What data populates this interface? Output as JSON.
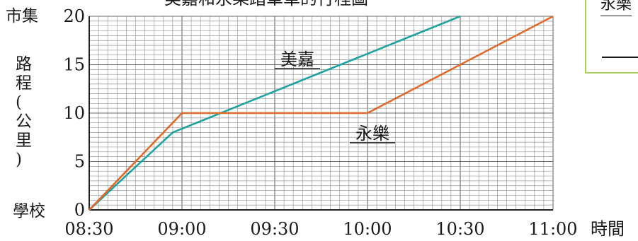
{
  "chart_data": {
    "type": "line",
    "title": "",
    "title_fragment": "美嘉和永樂踏單車的行程圖",
    "legend_fragment": "永樂",
    "xlabel": "時間",
    "ylabel": "路程(公里)",
    "y_top_label": "市集",
    "y_bottom_label": "學校",
    "x_ticks": [
      "08:30",
      "09:00",
      "09:30",
      "10:00",
      "10:30",
      "11:00"
    ],
    "y_ticks": [
      0,
      5,
      10,
      15,
      20
    ],
    "xlim": [
      "08:30",
      "11:00"
    ],
    "ylim": [
      0,
      20
    ],
    "grid": true,
    "series": [
      {
        "name": "美嘉",
        "color": "#1fa3a0",
        "x": [
          "08:30",
          "08:57",
          "10:30"
        ],
        "y": [
          0,
          8,
          20
        ]
      },
      {
        "name": "永樂",
        "color": "#e06a2b",
        "x": [
          "08:30",
          "09:00",
          "10:00",
          "11:00"
        ],
        "y": [
          0,
          10,
          10,
          20
        ]
      }
    ]
  }
}
